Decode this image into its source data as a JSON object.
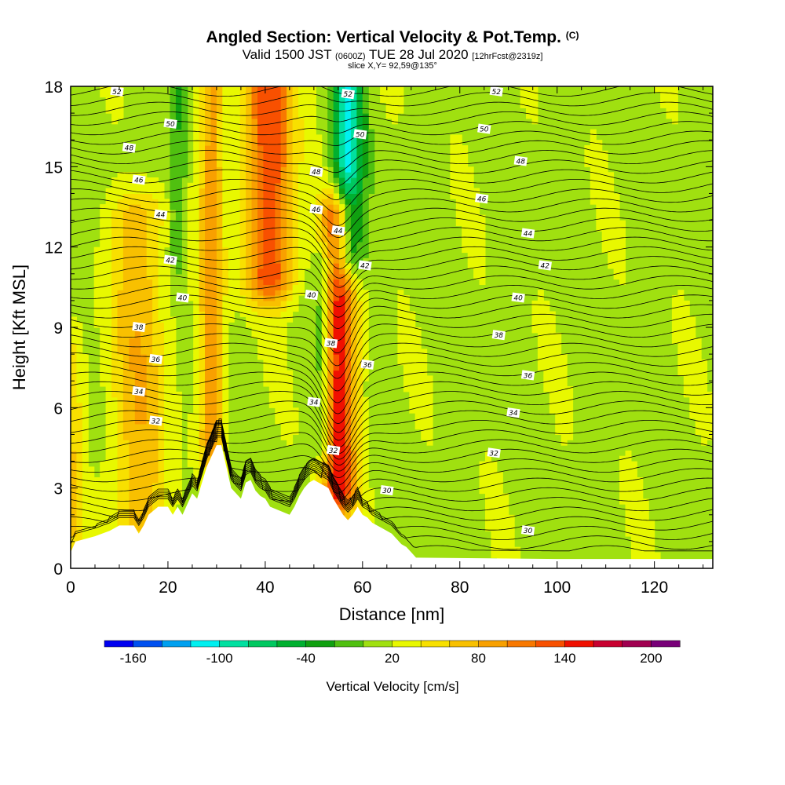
{
  "title": {
    "main": "Angled Section: Vertical Velocity & Pot.Temp.",
    "unit_tag": "(C)",
    "valid_prefix": "Valid 1500 JST",
    "valid_zulu": "(0600Z)",
    "valid_date": "TUE 28 Jul 2020",
    "forecast_tag": "[12hrFcst@2319z]",
    "slice": "slice X,Y= 92,59@135°"
  },
  "chart_data": {
    "type": "heatmap",
    "title": "Angled Section: Vertical Velocity & Pot.Temp.",
    "xlabel": "Distance [nm]",
    "ylabel": "Height [Kft MSL]",
    "xlim": [
      0,
      132
    ],
    "ylim": [
      0,
      18
    ],
    "x_ticks": [
      0,
      20,
      40,
      60,
      80,
      100,
      120
    ],
    "y_ticks": [
      0,
      3,
      6,
      9,
      12,
      15,
      18
    ],
    "grid": false,
    "colorbar": {
      "title": "Vertical Velocity [cm/s]",
      "placement": "bottom",
      "ticks": [
        -160,
        -100,
        -40,
        20,
        80,
        140,
        200
      ],
      "bins": [
        -180,
        -160,
        -140,
        -120,
        -100,
        -80,
        -60,
        -40,
        -20,
        0,
        20,
        40,
        60,
        80,
        100,
        120,
        140,
        160,
        180,
        200,
        220
      ],
      "colors": [
        "#0000f0",
        "#0050f0",
        "#00a0f0",
        "#00f0f0",
        "#00e0a0",
        "#00c860",
        "#00b030",
        "#10a010",
        "#50c010",
        "#a0e010",
        "#e8f800",
        "#f8e000",
        "#f8c000",
        "#f8a000",
        "#f87800",
        "#f85000",
        "#f01000",
        "#c80030",
        "#a00050",
        "#780078"
      ]
    },
    "terrain": {
      "units": "Kft MSL",
      "x": [
        0,
        1,
        5,
        8,
        10,
        13,
        14,
        15,
        16,
        18,
        20,
        21,
        22,
        23,
        25,
        26,
        27,
        28,
        30,
        31,
        32,
        33,
        35,
        36,
        37,
        38,
        39,
        40,
        41,
        45,
        46,
        47,
        48,
        49,
        50,
        53,
        54,
        55,
        56,
        57,
        58,
        59,
        60,
        61,
        62,
        64,
        66,
        67,
        68,
        69,
        70,
        71,
        100,
        132
      ],
      "y": [
        0.6,
        1.0,
        1.2,
        1.4,
        1.6,
        1.6,
        1.3,
        1.6,
        2.0,
        2.3,
        2.3,
        2.0,
        2.3,
        2.0,
        2.8,
        2.6,
        3.2,
        3.8,
        4.6,
        4.6,
        3.8,
        3.0,
        2.6,
        3.2,
        3.3,
        2.9,
        2.7,
        2.6,
        2.3,
        2.0,
        2.3,
        2.7,
        3.0,
        3.2,
        3.3,
        3.0,
        2.6,
        2.3,
        2.0,
        1.8,
        2.0,
        2.3,
        2.0,
        1.9,
        1.7,
        1.5,
        1.3,
        1.1,
        0.9,
        0.8,
        0.6,
        0.4,
        0.35,
        0.35
      ]
    },
    "updrafts": [
      {
        "x": 14,
        "y0": 2.0,
        "y1": 13.0,
        "width": 6,
        "peak_cm_s": 60
      },
      {
        "x": 29,
        "y0": 4.8,
        "y1": 18.0,
        "width": 2.5,
        "peak_cm_s": 80
      },
      {
        "x": 41,
        "y0": 11.0,
        "y1": 18.0,
        "width": 5,
        "peak_cm_s": 120
      },
      {
        "x": 55,
        "y0": 3.0,
        "y1": 13.0,
        "width": 3.5,
        "peak_cm_s": 140
      },
      {
        "x": 0.5,
        "y0": 1.5,
        "y1": 7.5,
        "width": 2,
        "peak_cm_s": 40
      }
    ],
    "downdrafts": [
      {
        "x": 57,
        "y0": 12.0,
        "y1": 18.0,
        "width": 3,
        "peak_cm_s": -120
      },
      {
        "x": 52,
        "y0": 5.0,
        "y1": 11.0,
        "width": 2,
        "peak_cm_s": -60
      },
      {
        "x": 22,
        "y0": 12.0,
        "y1": 18.0,
        "width": 2,
        "peak_cm_s": -40
      }
    ],
    "isentropes": {
      "units": "C",
      "levels": [
        30,
        32,
        34,
        36,
        38,
        40,
        42,
        44,
        46,
        48,
        50,
        52
      ],
      "labels": [
        {
          "text": "52",
          "x": 9.5,
          "y": 17.8
        },
        {
          "text": "50",
          "x": 20.5,
          "y": 16.6
        },
        {
          "text": "48",
          "x": 12,
          "y": 15.7
        },
        {
          "text": "46",
          "x": 14,
          "y": 14.5
        },
        {
          "text": "44",
          "x": 18.5,
          "y": 13.2
        },
        {
          "text": "42",
          "x": 20.5,
          "y": 11.5
        },
        {
          "text": "40",
          "x": 23,
          "y": 10.1
        },
        {
          "text": "38",
          "x": 14,
          "y": 9.0
        },
        {
          "text": "36",
          "x": 17.5,
          "y": 7.8
        },
        {
          "text": "34",
          "x": 14,
          "y": 6.6
        },
        {
          "text": "32",
          "x": 17.5,
          "y": 5.5
        },
        {
          "text": "48",
          "x": 50.5,
          "y": 14.8
        },
        {
          "text": "46",
          "x": 50.5,
          "y": 13.4
        },
        {
          "text": "44",
          "x": 55,
          "y": 12.6
        },
        {
          "text": "42",
          "x": 60.5,
          "y": 11.3
        },
        {
          "text": "40",
          "x": 49.5,
          "y": 10.2
        },
        {
          "text": "38",
          "x": 53.5,
          "y": 8.4
        },
        {
          "text": "36",
          "x": 61,
          "y": 7.6
        },
        {
          "text": "34",
          "x": 50,
          "y": 6.2
        },
        {
          "text": "32",
          "x": 54,
          "y": 4.4
        },
        {
          "text": "30",
          "x": 65,
          "y": 2.9
        },
        {
          "text": "52",
          "x": 57,
          "y": 17.7
        },
        {
          "text": "50",
          "x": 59.5,
          "y": 16.2
        },
        {
          "text": "52",
          "x": 87.5,
          "y": 17.8
        },
        {
          "text": "50",
          "x": 85,
          "y": 16.4
        },
        {
          "text": "48",
          "x": 92.5,
          "y": 15.2
        },
        {
          "text": "46",
          "x": 84.5,
          "y": 13.8
        },
        {
          "text": "44",
          "x": 94,
          "y": 12.5
        },
        {
          "text": "42",
          "x": 97.5,
          "y": 11.3
        },
        {
          "text": "40",
          "x": 92,
          "y": 10.1
        },
        {
          "text": "38",
          "x": 88,
          "y": 8.7
        },
        {
          "text": "36",
          "x": 94,
          "y": 7.2
        },
        {
          "text": "34",
          "x": 91,
          "y": 5.8
        },
        {
          "text": "32",
          "x": 87,
          "y": 4.3
        },
        {
          "text": "30",
          "x": 94,
          "y": 1.4
        }
      ]
    }
  }
}
